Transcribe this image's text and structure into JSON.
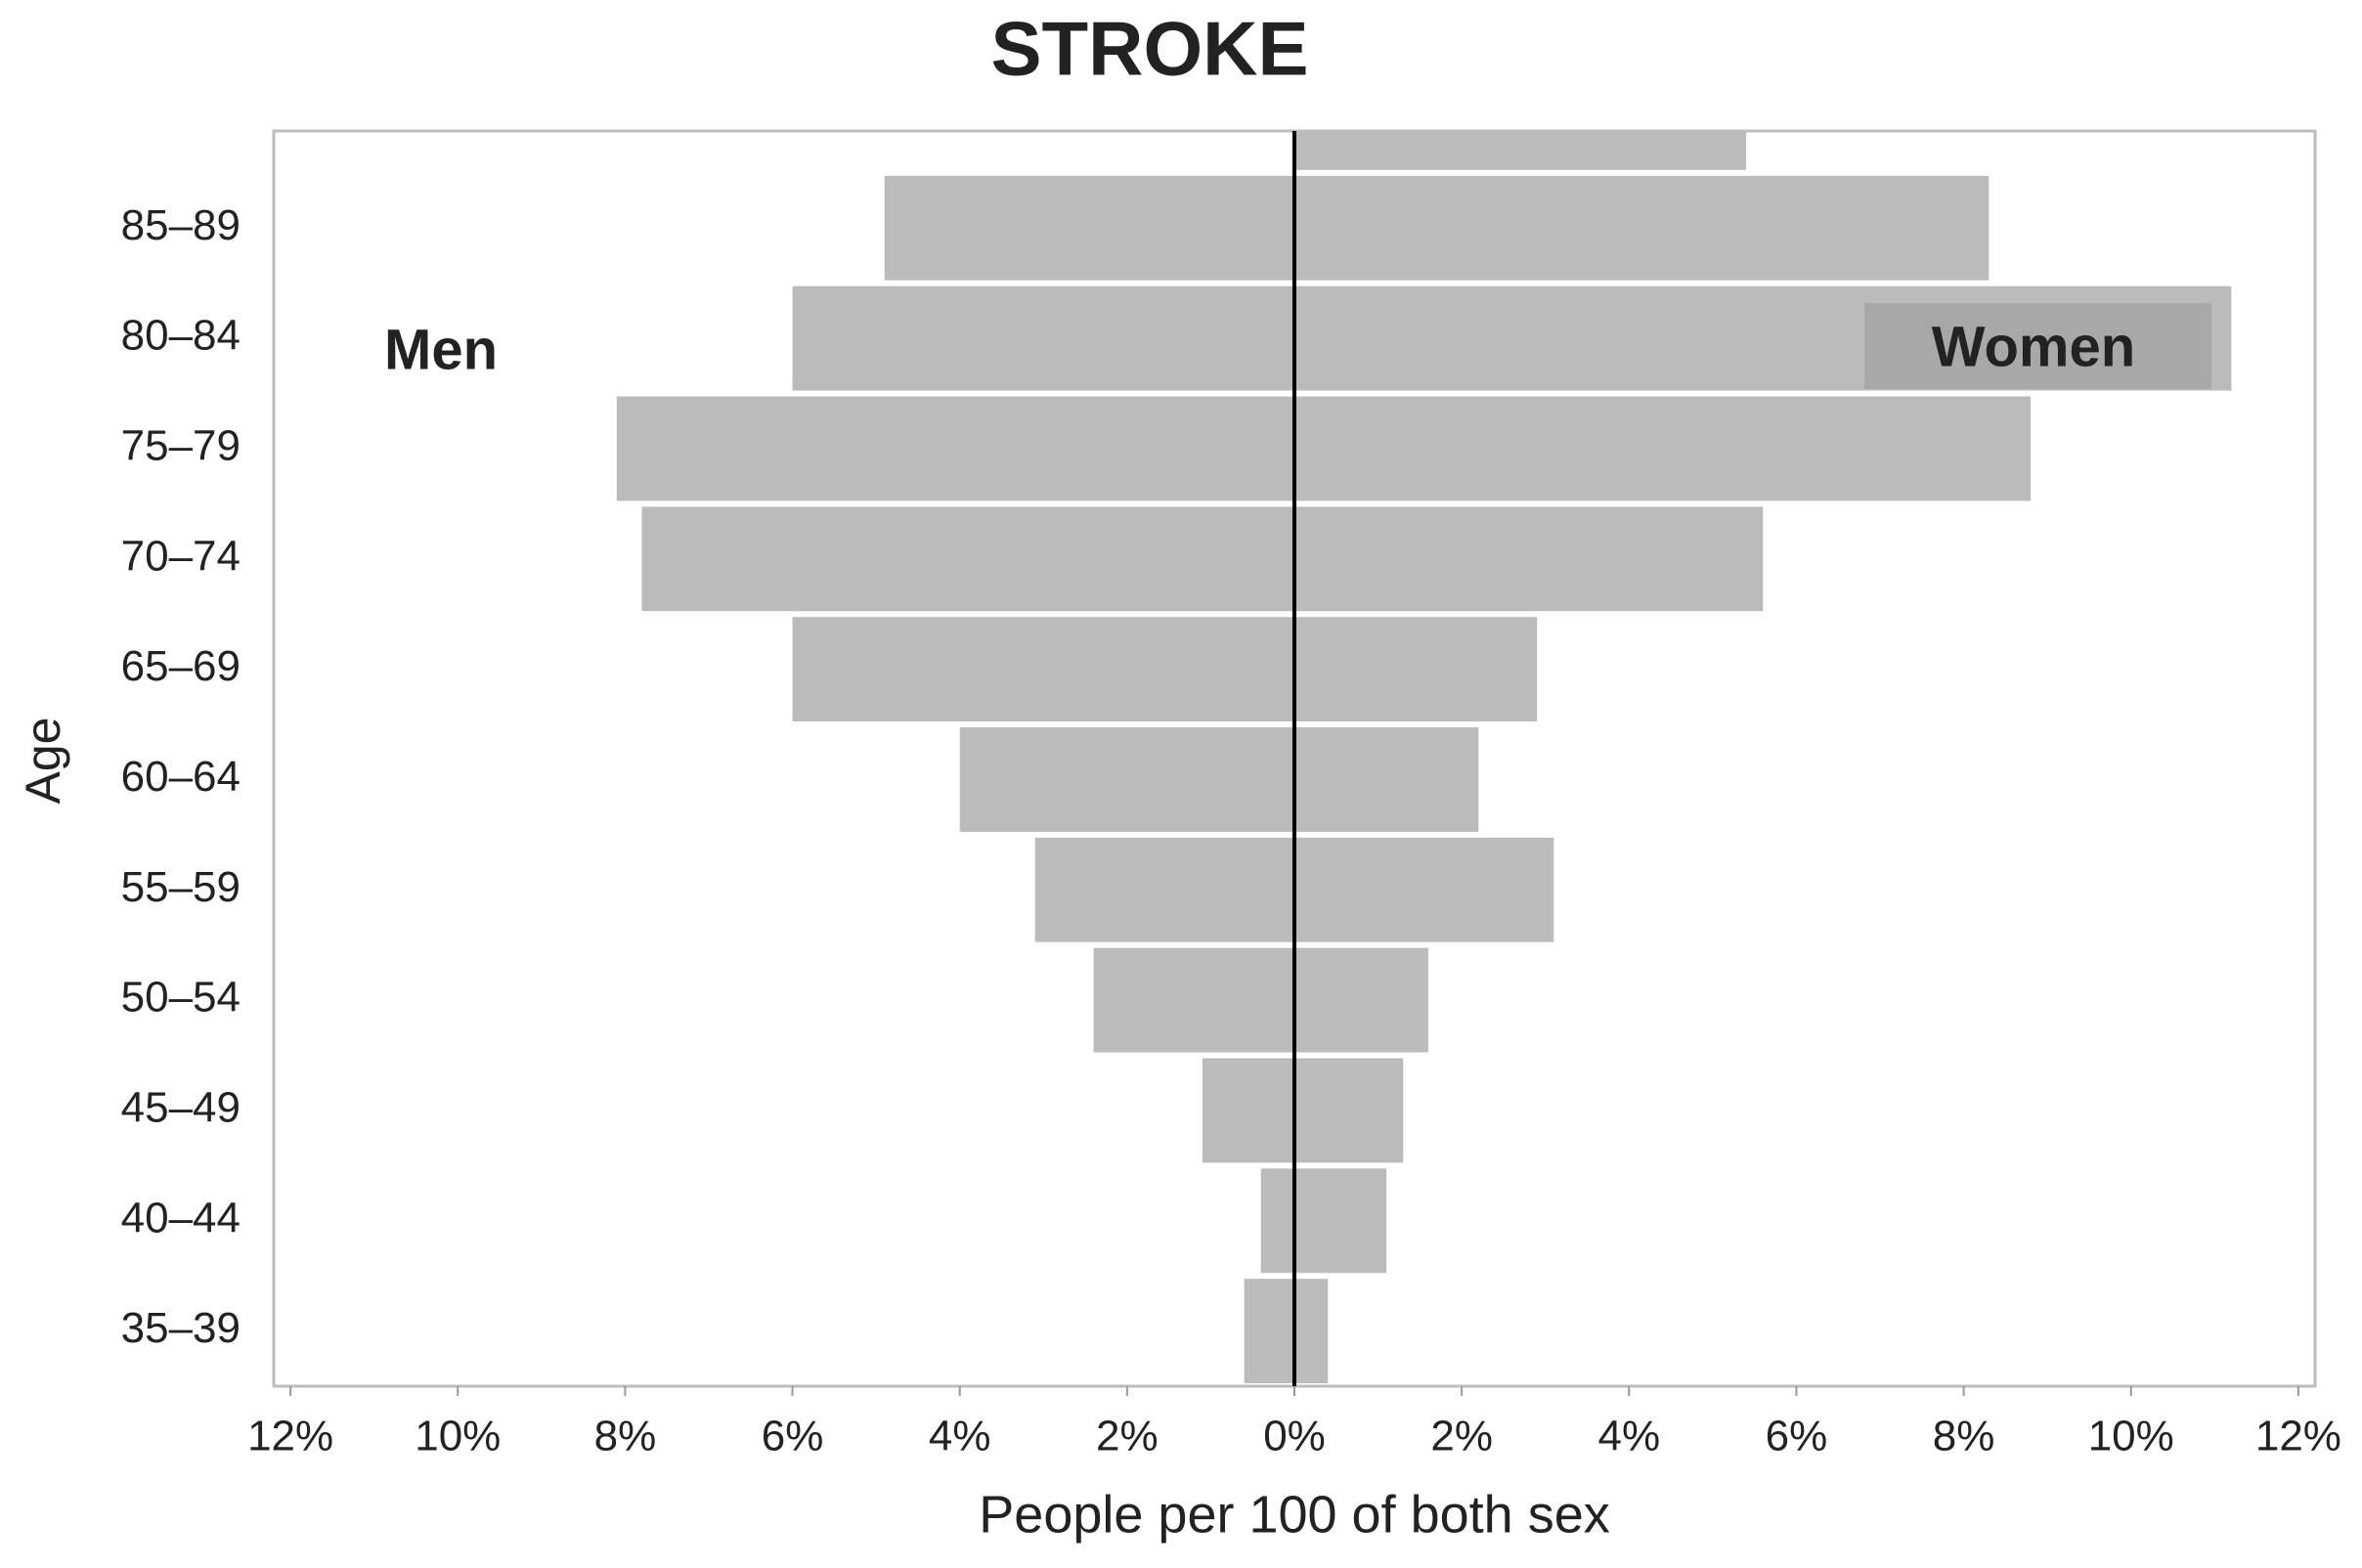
{
  "chart_data": {
    "type": "pyramid",
    "title": "STROKE",
    "x_label": "People per 100 of both sex",
    "y_label": "Age",
    "categories": [
      "35–39",
      "40–44",
      "45–49",
      "50–54",
      "55–59",
      "60–64",
      "65–69",
      "70–74",
      "75–79",
      "80–84",
      "85–89",
      null
    ],
    "series": [
      {
        "name": "Men",
        "color": "#bbbbbb",
        "values": [
          -0.6,
          -0.4,
          -1.1,
          -2.4,
          -3.1,
          -4.0,
          -6.0,
          -7.8,
          -8.1,
          -6.0,
          -4.9,
          0
        ]
      },
      {
        "name": "Women",
        "color": "#bbbbbb",
        "values": [
          0.4,
          1.1,
          1.3,
          1.6,
          3.1,
          2.2,
          2.9,
          5.6,
          8.8,
          11.2,
          8.3,
          5.4
        ]
      }
    ],
    "xlim": [
      -12.2,
      12.2
    ],
    "xticks": [
      {
        "value": -12,
        "label": "12%"
      },
      {
        "value": -10,
        "label": "10%"
      },
      {
        "value": -8,
        "label": "8%"
      },
      {
        "value": -6,
        "label": "6%"
      },
      {
        "value": -4,
        "label": "4%"
      },
      {
        "value": -2,
        "label": "2%"
      },
      {
        "value": 0,
        "label": "0%"
      },
      {
        "value": 2,
        "label": "2%"
      },
      {
        "value": 4,
        "label": "4%"
      },
      {
        "value": 6,
        "label": "6%"
      },
      {
        "value": 8,
        "label": "8%"
      },
      {
        "value": 10,
        "label": "10%"
      },
      {
        "value": 12,
        "label": "12%"
      }
    ]
  }
}
